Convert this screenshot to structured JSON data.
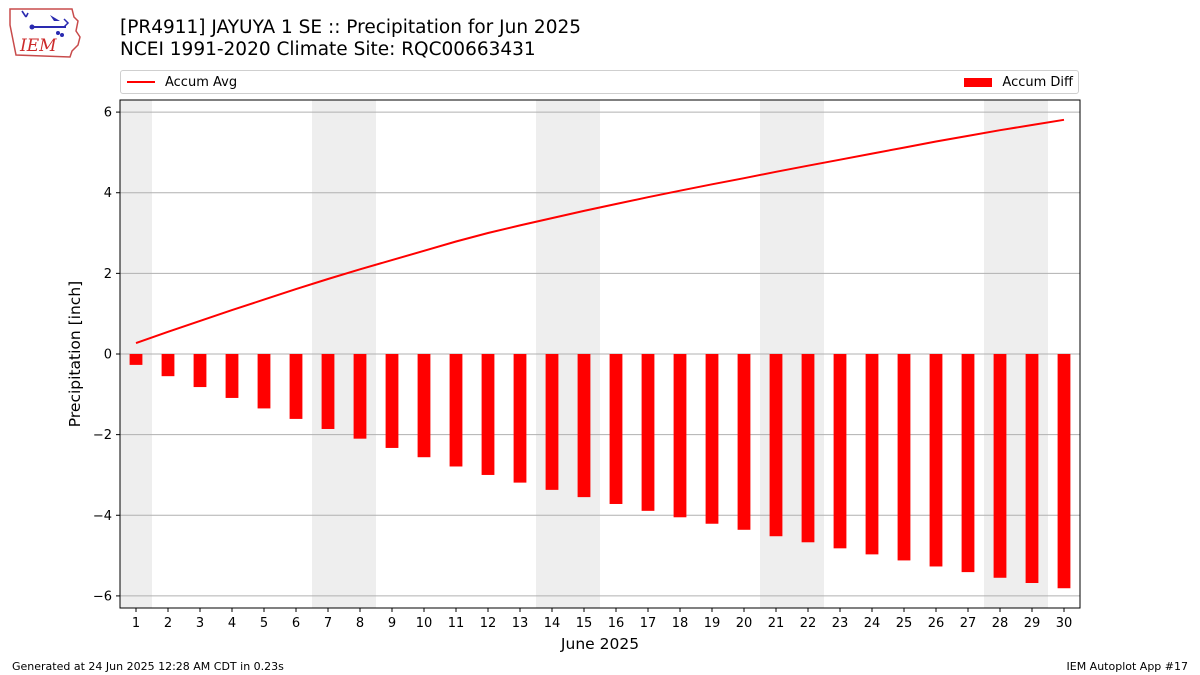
{
  "header": {
    "title_line1": "[PR4911] JAYUYA 1 SE :: Precipitation for Jun 2025",
    "title_line2": "NCEI 1991-2020 Climate Site: RQC00663431",
    "logo_text": "IEM"
  },
  "legend": {
    "line_label": "Accum Avg",
    "bar_label": "Accum Diff"
  },
  "footer": {
    "left": "Generated at 24 Jun 2025 12:28 AM CDT in 0.23s",
    "right": "IEM Autoplot App #17"
  },
  "colors": {
    "series": "#ff0000",
    "weekend_shade": "#eeeeee",
    "grid": "#b0b0b0"
  },
  "chart_data": {
    "type": "bar",
    "xlabel": "June 2025",
    "ylabel": "Precipitation [inch]",
    "ylim": [
      -6.3,
      6.3
    ],
    "yticks": [
      -6,
      -4,
      -2,
      0,
      2,
      4,
      6
    ],
    "grid": "horizontal",
    "legend_placement": "top",
    "categories": [
      1,
      2,
      3,
      4,
      5,
      6,
      7,
      8,
      9,
      10,
      11,
      12,
      13,
      14,
      15,
      16,
      17,
      18,
      19,
      20,
      21,
      22,
      23,
      24,
      25,
      26,
      27,
      28,
      29,
      30
    ],
    "weekend_days": [
      1,
      7,
      8,
      14,
      15,
      21,
      22,
      28,
      29
    ],
    "series": [
      {
        "name": "Accum Avg",
        "kind": "line",
        "values": [
          0.27,
          0.55,
          0.82,
          1.09,
          1.35,
          1.61,
          1.86,
          2.1,
          2.33,
          2.56,
          2.79,
          3.0,
          3.19,
          3.37,
          3.55,
          3.72,
          3.89,
          4.05,
          4.21,
          4.36,
          4.52,
          4.67,
          4.82,
          4.97,
          5.12,
          5.27,
          5.41,
          5.55,
          5.68,
          5.81
        ]
      },
      {
        "name": "Accum Diff",
        "kind": "bar",
        "values": [
          -0.27,
          -0.55,
          -0.82,
          -1.09,
          -1.35,
          -1.61,
          -1.86,
          -2.1,
          -2.33,
          -2.56,
          -2.79,
          -3.0,
          -3.19,
          -3.37,
          -3.55,
          -3.72,
          -3.89,
          -4.05,
          -4.21,
          -4.36,
          -4.52,
          -4.67,
          -4.82,
          -4.97,
          -5.12,
          -5.27,
          -5.41,
          -5.55,
          -5.68,
          -5.81
        ]
      }
    ]
  }
}
